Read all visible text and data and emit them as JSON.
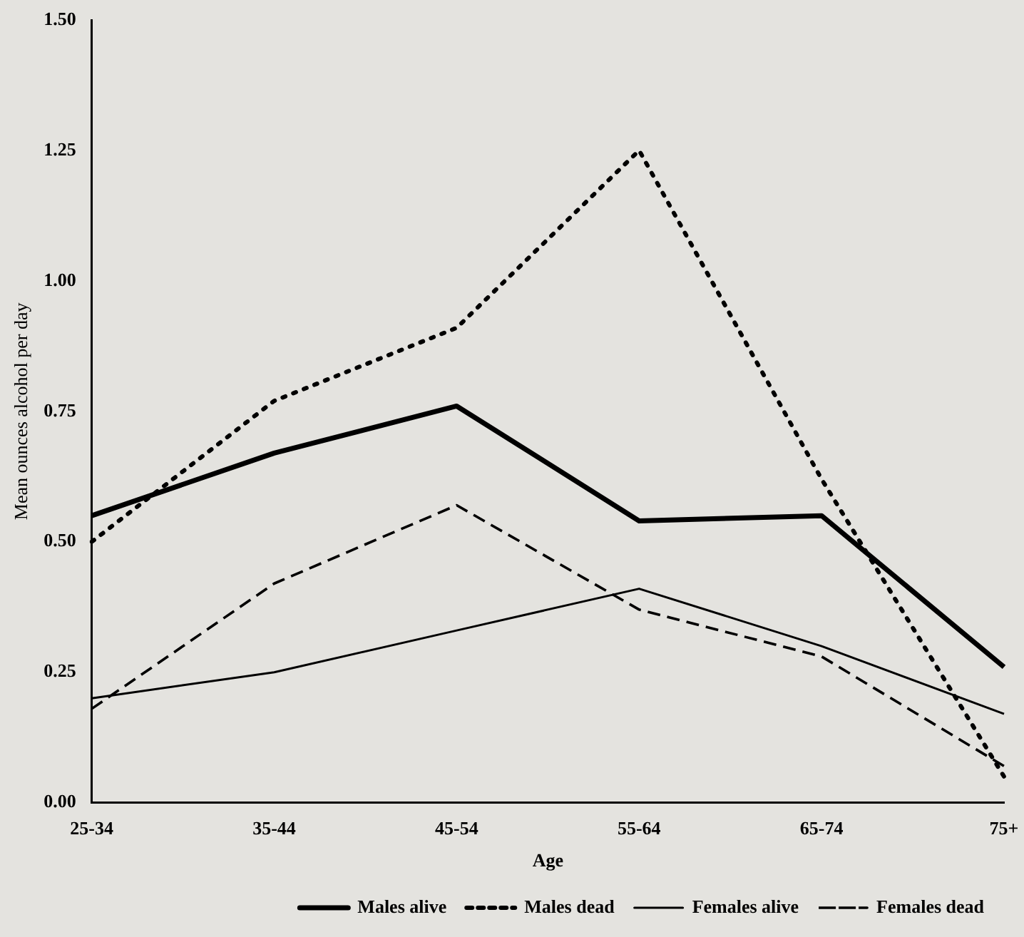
{
  "chart_data": {
    "type": "line",
    "xlabel": "Age",
    "ylabel": "Mean ounces alcohol per day",
    "categories": [
      "25-34",
      "35-44",
      "45-54",
      "55-64",
      "65-74",
      "75+"
    ],
    "ylim": [
      0,
      1.5
    ],
    "yticks": [
      {
        "value": 0,
        "label": "0.00"
      },
      {
        "value": 0.25,
        "label": "0.25"
      },
      {
        "value": 0.5,
        "label": "0.50"
      },
      {
        "value": 0.75,
        "label": "0.75"
      },
      {
        "value": 1,
        "label": "1.00"
      },
      {
        "value": 1.25,
        "label": "1.25"
      },
      {
        "value": 1.5,
        "label": "1.50"
      }
    ],
    "grid": false,
    "legend": "bottom right",
    "marker": "none",
    "series": [
      {
        "name": "Males alive",
        "color": "#000000",
        "line_style": "solid",
        "values": [
          0.55,
          0.67,
          0.76,
          0.54,
          0.55,
          0.26
        ]
      },
      {
        "name": "Males dead",
        "color": "#000000",
        "line_style": "dotted",
        "values": [
          0.5,
          0.77,
          0.91,
          1.25,
          0.62,
          0.05
        ]
      },
      {
        "name": "Females alive",
        "color": "#000000",
        "line_style": "solid",
        "values": [
          0.2,
          0.25,
          0.33,
          0.41,
          0.3,
          0.17
        ]
      },
      {
        "name": "Females dead",
        "color": "#000000",
        "line_style": "dashed",
        "values": [
          0.18,
          0.42,
          0.57,
          0.37,
          0.28,
          0.07
        ]
      }
    ]
  }
}
